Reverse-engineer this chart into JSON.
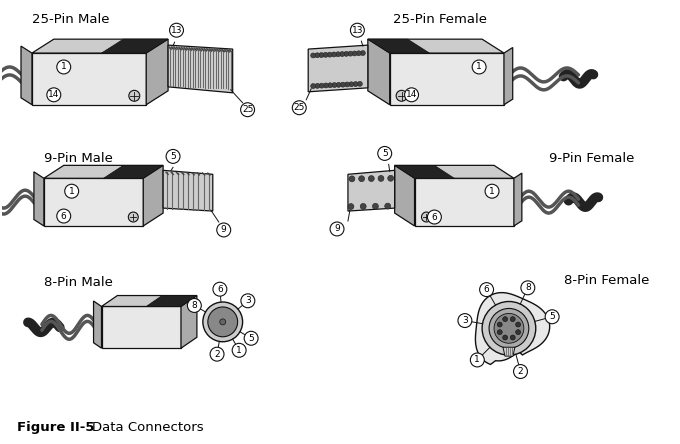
{
  "bg_color": "#ffffff",
  "lc": "#111111",
  "labels": {
    "pin25_male": "25-Pin Male",
    "pin25_female": "25-Pin Female",
    "pin9_male": "9-Pin Male",
    "pin9_female": "9-Pin Female",
    "pin8_male": "8-Pin Male",
    "pin8_female": "8-Pin Female"
  },
  "caption_bold": "Figure II-5",
  "caption_normal": "  Data Connectors",
  "face_light": "#e8e8e8",
  "face_mid": "#cccccc",
  "face_dark": "#aaaaaa",
  "face_darker": "#888888",
  "face_black": "#222222",
  "cable_color": "#333333",
  "pin_dot": "#555555"
}
